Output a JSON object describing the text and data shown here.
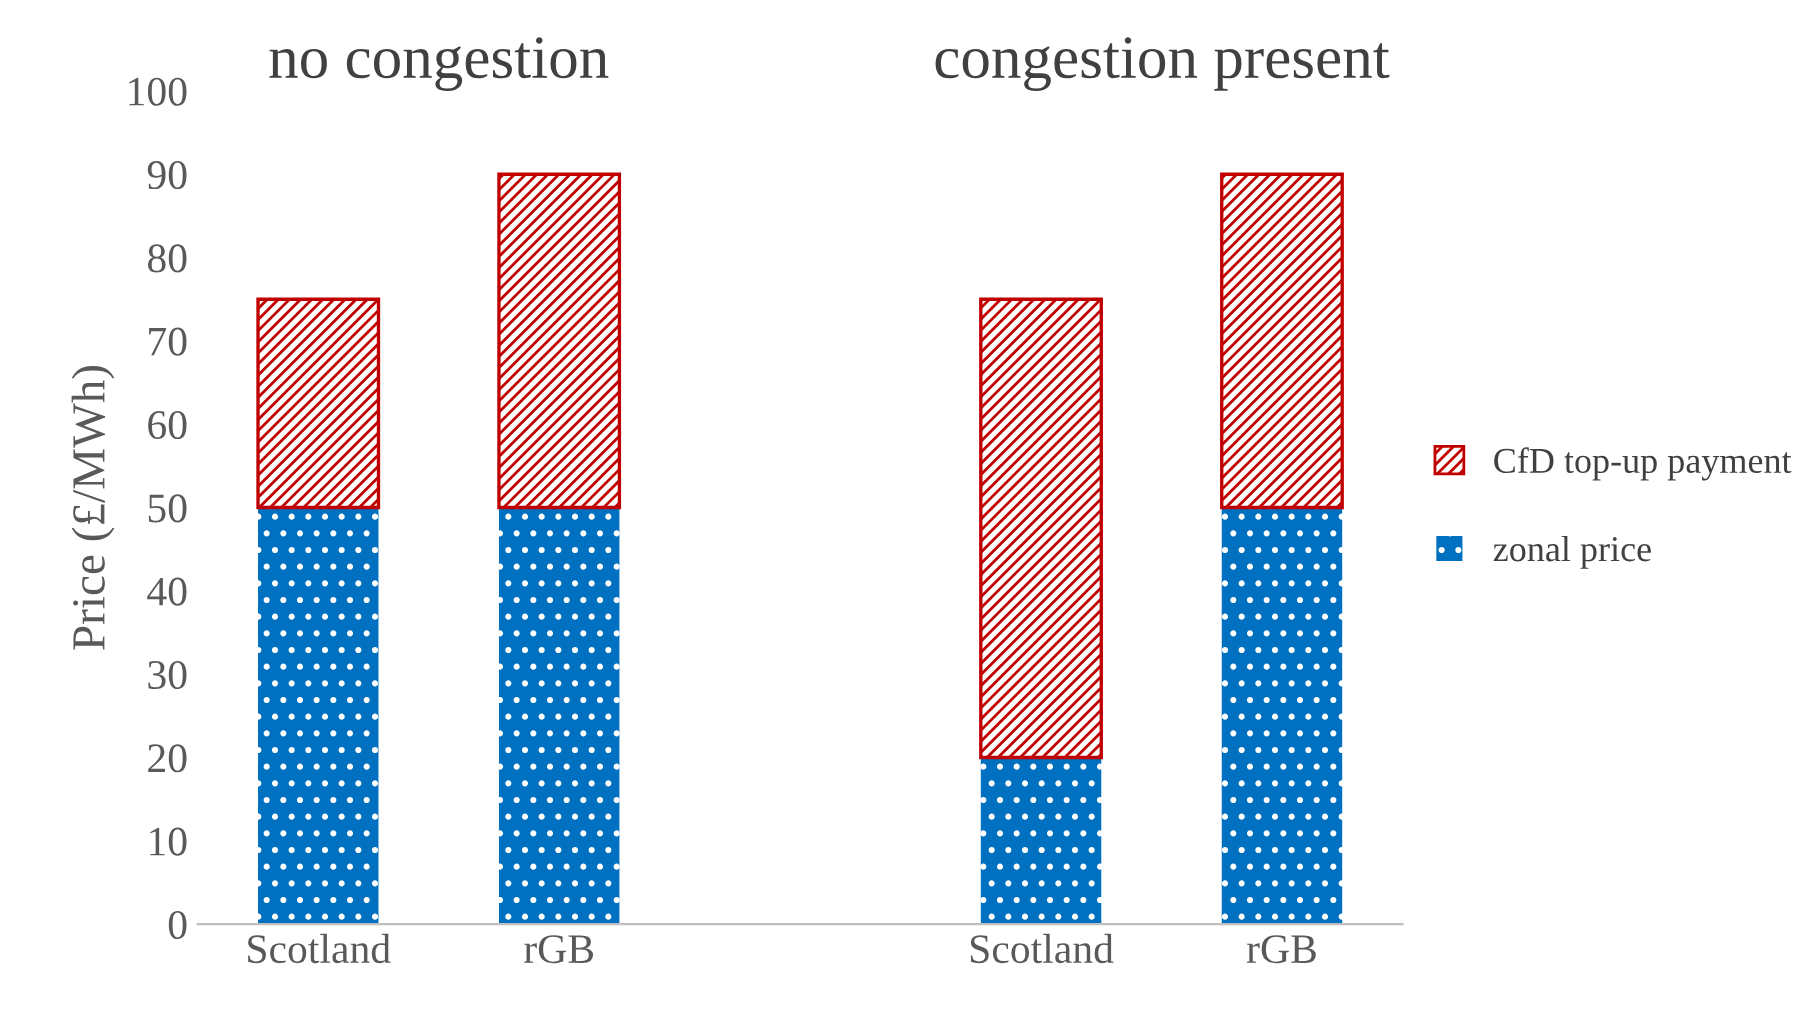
{
  "chart_data": {
    "type": "bar",
    "stacked": true,
    "categories": [
      "Scotland",
      "rGB",
      null,
      "Scotland",
      "rGB"
    ],
    "series": [
      {
        "name": "zonal price",
        "color": "#0070c0",
        "values": [
          50,
          50,
          null,
          20,
          50
        ]
      },
      {
        "name": "CfD top-up payment",
        "color": "#c00000",
        "values": [
          25,
          40,
          null,
          55,
          40
        ]
      }
    ],
    "annotations": [
      "no congestion",
      "congestion present"
    ],
    "ylabel": "Price (£/MWh)",
    "ylim": [
      0,
      100
    ],
    "yticks": [
      0,
      10,
      20,
      30,
      40,
      50,
      60,
      70,
      80,
      90,
      100
    ],
    "grid": false,
    "legend": "right"
  }
}
